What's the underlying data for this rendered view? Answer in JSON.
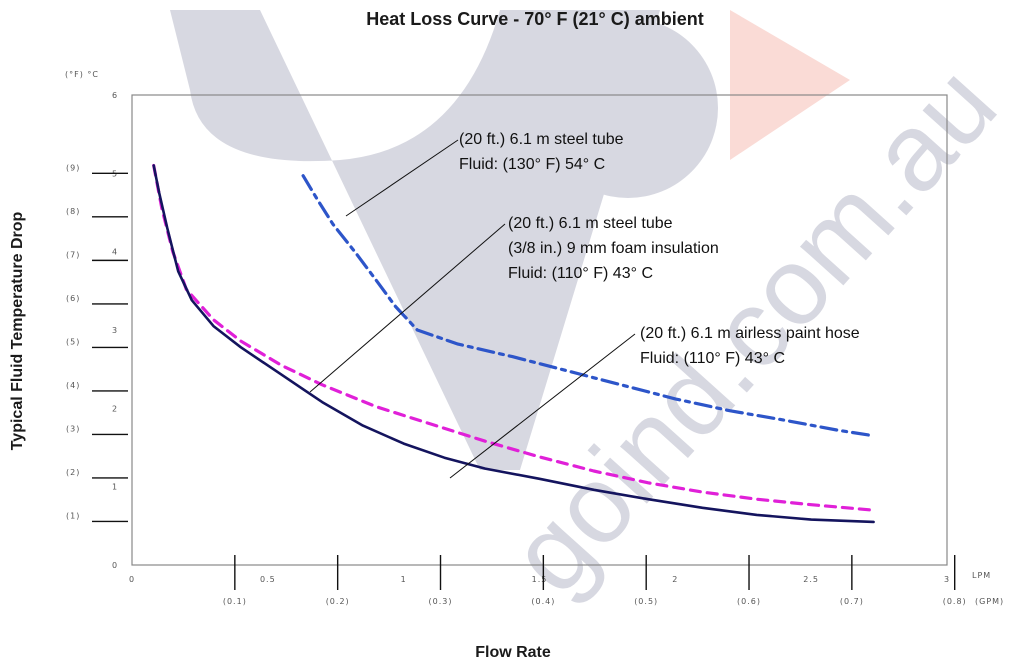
{
  "watermark": {
    "text": "goind.com.au",
    "colors": {
      "gray": "#4a4e76",
      "red": "#e84d33"
    }
  },
  "chart_data": {
    "type": "line",
    "title": "Heat Loss Curve - 70° F (21° C) ambient",
    "xlabel": "Flow Rate",
    "ylabel": "Typical Fluid Temperature Drop",
    "xlim": [
      0,
      3
    ],
    "ylim": [
      0,
      6
    ],
    "x_unit_primary": "LPM",
    "x_unit_secondary": "(GPM)",
    "y_unit_header": "(°F) °C",
    "x_ticks_lpm": [
      "0",
      "0.5",
      "1",
      "1.5",
      "2",
      "2.5",
      "3"
    ],
    "x_ticks_gpm": [
      "(0.1)",
      "(0.2)",
      "(0.3)",
      "(0.4)",
      "(0.5)",
      "(0.6)",
      "(0.7)",
      "(0.8)"
    ],
    "y_ticks_c": [
      "0",
      "1",
      "2",
      "3",
      "4",
      "5",
      "6"
    ],
    "y_ticks_f": [
      "(1)",
      "(2)",
      "(3)",
      "(4)",
      "(5)",
      "(6)",
      "(7)",
      "(8)",
      "(9)"
    ],
    "series": [
      {
        "name": "(20 ft.) 6.1 m steel tube, Fluid: (130° F) 54° C",
        "color": "#2d55c9",
        "style": "dash-dot",
        "x": [
          0.63,
          0.68,
          0.74,
          0.82,
          0.9,
          0.97,
          1.05,
          1.2,
          1.4,
          1.6,
          1.8,
          2.0,
          2.2,
          2.4,
          2.6,
          2.73
        ],
        "y": [
          4.97,
          4.68,
          4.35,
          4.0,
          3.63,
          3.3,
          3.0,
          2.82,
          2.66,
          2.48,
          2.3,
          2.12,
          1.97,
          1.85,
          1.72,
          1.65
        ]
      },
      {
        "name": "(20 ft.) 6.1 m steel tube, (3/8 in.) 9 mm foam insulation, Fluid: (110° F) 43° C",
        "color": "#e020d8",
        "style": "dashed",
        "x": [
          0.08,
          0.11,
          0.15,
          0.2,
          0.3,
          0.4,
          0.55,
          0.7,
          0.9,
          1.1,
          1.3,
          1.5,
          1.7,
          1.9,
          2.1,
          2.3,
          2.5,
          2.73
        ],
        "y": [
          5.1,
          4.55,
          4.0,
          3.52,
          3.13,
          2.86,
          2.55,
          2.3,
          2.02,
          1.8,
          1.58,
          1.38,
          1.2,
          1.05,
          0.93,
          0.84,
          0.77,
          0.7
        ]
      },
      {
        "name": "(20 ft.) 6.1 m airless paint hose, Fluid: (110° F) 43° C",
        "color": "#14145e",
        "style": "solid",
        "x": [
          0.08,
          0.1,
          0.13,
          0.17,
          0.22,
          0.3,
          0.4,
          0.55,
          0.7,
          0.85,
          1.0,
          1.15,
          1.3,
          1.5,
          1.7,
          1.9,
          2.1,
          2.3,
          2.5,
          2.73
        ],
        "y": [
          5.1,
          4.75,
          4.3,
          3.75,
          3.38,
          3.05,
          2.78,
          2.43,
          2.08,
          1.78,
          1.55,
          1.37,
          1.23,
          1.1,
          0.96,
          0.84,
          0.73,
          0.64,
          0.58,
          0.55
        ]
      }
    ],
    "annotations": [
      {
        "lines": [
          "(20 ft.) 6.1 m steel tube",
          "Fluid: (130° F) 54° C"
        ]
      },
      {
        "lines": [
          "(20 ft.) 6.1 m steel tube",
          "(3/8 in.) 9 mm foam insulation",
          "Fluid: (110° F) 43° C"
        ]
      },
      {
        "lines": [
          "(20 ft.) 6.1 m airless paint hose",
          "Fluid: (110° F) 43° C"
        ]
      }
    ],
    "grid": false,
    "legend": "none (inline annotations with leader lines)"
  }
}
